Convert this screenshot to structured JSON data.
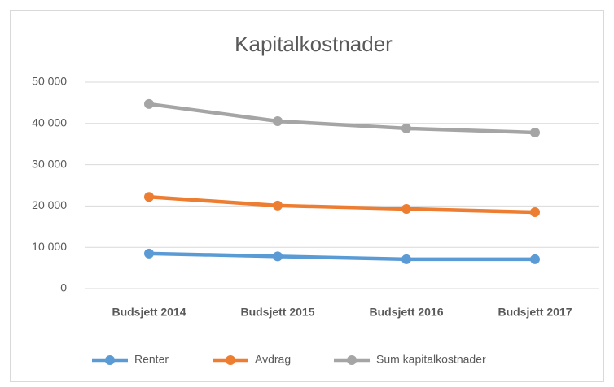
{
  "chart_data": {
    "type": "line",
    "title": "Kapitalkostnader",
    "categories": [
      "Budsjett 2014",
      "Budsjett 2015",
      "Budsjett 2016",
      "Budsjett 2017"
    ],
    "series": [
      {
        "name": "Renter",
        "color": "#5b9bd5",
        "values": [
          8500,
          7800,
          7100,
          7100
        ]
      },
      {
        "name": "Avdrag",
        "color": "#ed7d31",
        "values": [
          22200,
          20100,
          19300,
          18500
        ]
      },
      {
        "name": "Sum kapitalkostnader",
        "color": "#a5a5a5",
        "values": [
          44700,
          40550,
          38800,
          37800
        ]
      }
    ],
    "ylim": [
      0,
      50000
    ],
    "yticks": [
      0,
      {
        "value": 10000,
        "label": "10 000"
      },
      {
        "value": 20000,
        "label": "20 000"
      },
      {
        "value": 30000,
        "label": "30 000"
      },
      {
        "value": 40000,
        "label": "40 000"
      },
      {
        "value": 50000,
        "label": "50 000"
      }
    ],
    "grid": true,
    "legend": "bottom"
  }
}
